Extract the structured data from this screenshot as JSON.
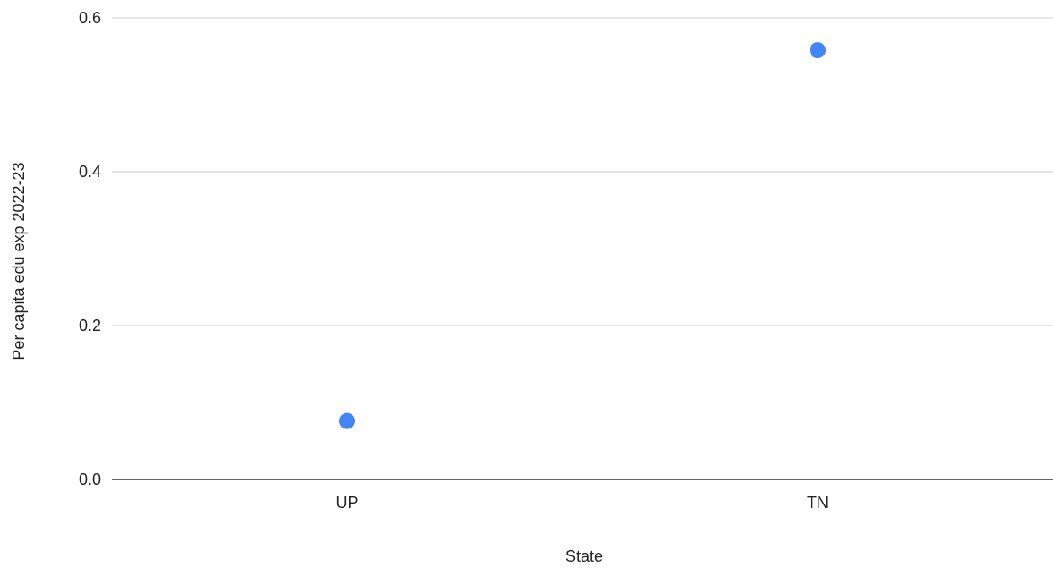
{
  "chart_data": {
    "type": "scatter",
    "title": "",
    "xlabel": "State",
    "ylabel": "Per capita edu exp 2022-23",
    "categories": [
      "UP",
      "TN"
    ],
    "values": [
      0.076,
      0.558
    ],
    "ylim": [
      0,
      0.6
    ],
    "yticks": [
      "0.0",
      "0.2",
      "0.4",
      "0.6"
    ],
    "yticks_values": [
      0,
      0.2,
      0.4,
      0.6
    ],
    "grid": true,
    "legend": "none",
    "point_color": "#4285f4"
  }
}
